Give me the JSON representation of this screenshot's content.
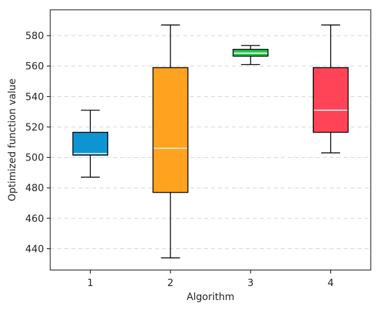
{
  "chart_data": {
    "type": "box",
    "title": "",
    "xlabel": "Algorithm",
    "ylabel": "Optimized function value",
    "ylim": [
      426,
      597
    ],
    "yticks": [
      440,
      460,
      480,
      500,
      520,
      540,
      560,
      580
    ],
    "grid": "horizontal dashed",
    "categories": [
      "1",
      "2",
      "3",
      "4"
    ],
    "boxes": [
      {
        "category": "1",
        "whisker_low": 487,
        "q1": 501.5,
        "median": 502.5,
        "q3": 516.5,
        "whisker_high": 531,
        "color": "#0d95d3"
      },
      {
        "category": "2",
        "whisker_low": 434,
        "q1": 477,
        "median": 506,
        "q3": 559,
        "whisker_high": 587,
        "color": "#ffa21f"
      },
      {
        "category": "3",
        "whisker_low": 561,
        "q1": 566.5,
        "median": 568.5,
        "q3": 571,
        "whisker_high": 573.5,
        "color": "#22c84a"
      },
      {
        "category": "4",
        "whisker_low": 503,
        "q1": 516.5,
        "median": 531,
        "q3": 559,
        "whisker_high": 587,
        "color": "#ff4458"
      }
    ]
  }
}
